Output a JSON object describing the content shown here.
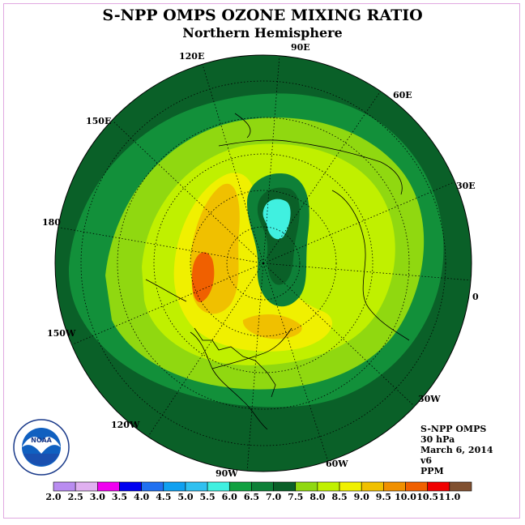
{
  "title": "S-NPP OMPS OZONE MIXING RATIO",
  "subtitle": "Northern Hemisphere",
  "longitude_labels": {
    "e90": "90E",
    "e60": "60E",
    "e30": "30E",
    "zero": "0",
    "w30": "30W",
    "w60": "60W",
    "w90": "90W",
    "w120": "120W",
    "w150": "150W",
    "d180": "180",
    "e150": "150E",
    "e120": "120E"
  },
  "info": {
    "instrument": "S-NPP OMPS",
    "level": "30 hPa",
    "date": "March 6, 2014",
    "version": "v6",
    "units": "PPM"
  },
  "logo_text": "NOAA",
  "colorbar": {
    "labels": [
      "2.0",
      "2.5",
      "3.0",
      "3.5",
      "4.0",
      "4.5",
      "5.0",
      "5.5",
      "6.0",
      "6.5",
      "7.0",
      "7.5",
      "8.0",
      "8.5",
      "9.0",
      "9.5",
      "10.0",
      "10.5",
      "11.0"
    ],
    "colors": [
      "#b98cf0",
      "#e0b0f0",
      "#f000f0",
      "#0000f0",
      "#2070f0",
      "#10a0f0",
      "#30c0f0",
      "#40f0e0",
      "#10a040",
      "#0e8038",
      "#0a6028",
      "#90d810",
      "#c0f000",
      "#f0f000",
      "#f0c000",
      "#f09000",
      "#f06000",
      "#f00000",
      "#805030"
    ]
  }
}
